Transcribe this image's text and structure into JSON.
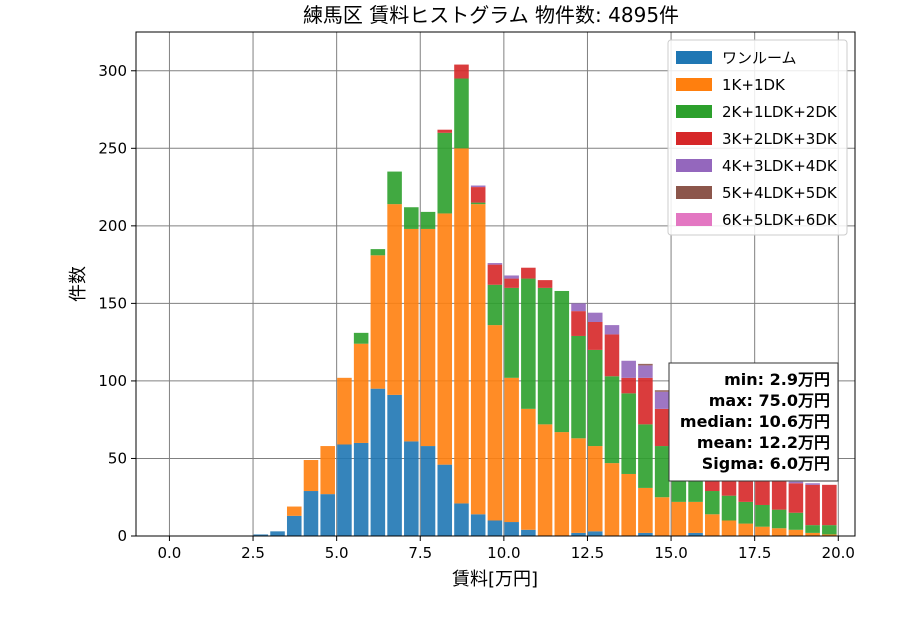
{
  "chart_data": {
    "type": "bar",
    "stacked": true,
    "title": "練馬区 賃料ヒストグラム  物件数: 4895件",
    "xlabel": "賃料[万円]",
    "ylabel": "件数",
    "xlim": [
      -1.0,
      20.5
    ],
    "ylim": [
      0,
      325
    ],
    "xticks": [
      "0.0",
      "2.5",
      "5.0",
      "7.5",
      "10.0",
      "12.5",
      "15.0",
      "17.5",
      "20.0"
    ],
    "yticks": [
      "0",
      "50",
      "100",
      "150",
      "200",
      "250",
      "300"
    ],
    "grid": true,
    "legend_position": "top-right",
    "bin_width": 0.5,
    "x": [
      2.5,
      3.0,
      3.5,
      4.0,
      4.5,
      5.0,
      5.5,
      6.0,
      6.5,
      7.0,
      7.5,
      8.0,
      8.5,
      9.0,
      9.5,
      10.0,
      10.5,
      11.0,
      11.5,
      12.0,
      12.5,
      13.0,
      13.5,
      14.0,
      14.5,
      15.0,
      15.5,
      16.0,
      16.5,
      17.0,
      17.5,
      18.0,
      18.5,
      19.0,
      19.5
    ],
    "series": [
      {
        "name": "ワンルーム",
        "color": "#1f77b4",
        "values": [
          1,
          3,
          13,
          29,
          27,
          59,
          60,
          95,
          91,
          61,
          58,
          46,
          21,
          14,
          10,
          9,
          4,
          0,
          0,
          2,
          3,
          0,
          0,
          2,
          0,
          0,
          2,
          0,
          0,
          0,
          0,
          0,
          0,
          0,
          0
        ]
      },
      {
        "name": "1K+1DK",
        "color": "#ff7f0e",
        "values": [
          0,
          0,
          6,
          20,
          31,
          43,
          64,
          86,
          123,
          137,
          140,
          162,
          229,
          200,
          126,
          93,
          78,
          72,
          67,
          61,
          55,
          47,
          40,
          29,
          25,
          22,
          20,
          14,
          10,
          8,
          6,
          5,
          4,
          2,
          1
        ]
      },
      {
        "name": "2K+1LDK+2DK",
        "color": "#2ca02c",
        "values": [
          0,
          0,
          0,
          0,
          0,
          0,
          7,
          4,
          21,
          14,
          11,
          52,
          45,
          1,
          26,
          58,
          84,
          88,
          91,
          66,
          62,
          56,
          52,
          41,
          33,
          27,
          19,
          15,
          16,
          14,
          14,
          12,
          11,
          5,
          6
        ]
      },
      {
        "name": "3K+2LDK+3DK",
        "color": "#d62728",
        "values": [
          0,
          0,
          0,
          0,
          0,
          0,
          0,
          0,
          0,
          0,
          0,
          2,
          9,
          10,
          13,
          6,
          7,
          5,
          0,
          16,
          18,
          27,
          10,
          30,
          24,
          25,
          24,
          24,
          24,
          22,
          21,
          20,
          19,
          26,
          26
        ]
      },
      {
        "name": "4K+3LDK+4DK",
        "color": "#9467bd",
        "values": [
          0,
          0,
          0,
          0,
          0,
          0,
          0,
          0,
          0,
          0,
          0,
          0,
          0,
          1,
          1,
          2,
          0,
          0,
          0,
          5,
          6,
          6,
          11,
          8,
          11,
          10,
          9,
          6,
          5,
          3,
          3,
          2,
          1,
          1,
          0
        ]
      },
      {
        "name": "5K+4LDK+5DK",
        "color": "#8c564b",
        "values": [
          0,
          0,
          0,
          0,
          0,
          0,
          0,
          0,
          0,
          0,
          0,
          0,
          0,
          0,
          0,
          0,
          0,
          0,
          0,
          0,
          0,
          0,
          0,
          1,
          1,
          0,
          0,
          0,
          0,
          0,
          0,
          0,
          0,
          0,
          0
        ]
      },
      {
        "name": "6K+5LDK+6DK",
        "color": "#e377c2",
        "values": [
          0,
          0,
          0,
          0,
          0,
          0,
          0,
          0,
          0,
          0,
          0,
          0,
          0,
          0,
          0,
          0,
          0,
          0,
          0,
          0,
          0,
          0,
          0,
          0,
          0,
          0,
          0,
          0,
          0,
          0,
          0,
          0,
          0,
          0,
          0
        ]
      }
    ],
    "stats": [
      "min: 2.9万円",
      "max: 75.0万円",
      "median: 10.6万円",
      "mean: 12.2万円",
      "Sigma: 6.0万円"
    ]
  }
}
